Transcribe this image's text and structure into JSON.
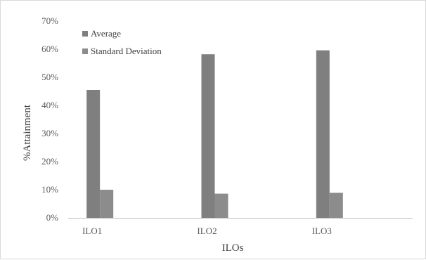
{
  "chart_data": {
    "type": "bar",
    "categories": [
      "ILO1",
      "ILO2",
      "ILO3"
    ],
    "series": [
      {
        "name": "Average",
        "values": [
          45.5,
          58.2,
          59.6
        ],
        "color": "#7f7f7f"
      },
      {
        "name": "Standard Deviation",
        "values": [
          10.0,
          8.6,
          8.9
        ],
        "color": "#8c8c8c"
      }
    ],
    "xlabel": "ILOs",
    "ylabel": "%Attainment",
    "ylim": [
      0,
      70
    ],
    "yticks": [
      0,
      10,
      20,
      30,
      40,
      50,
      60,
      70
    ],
    "ytick_format": "percent",
    "grid": false,
    "legend_position": "top-left",
    "axis_color": "#bfbfbf"
  }
}
